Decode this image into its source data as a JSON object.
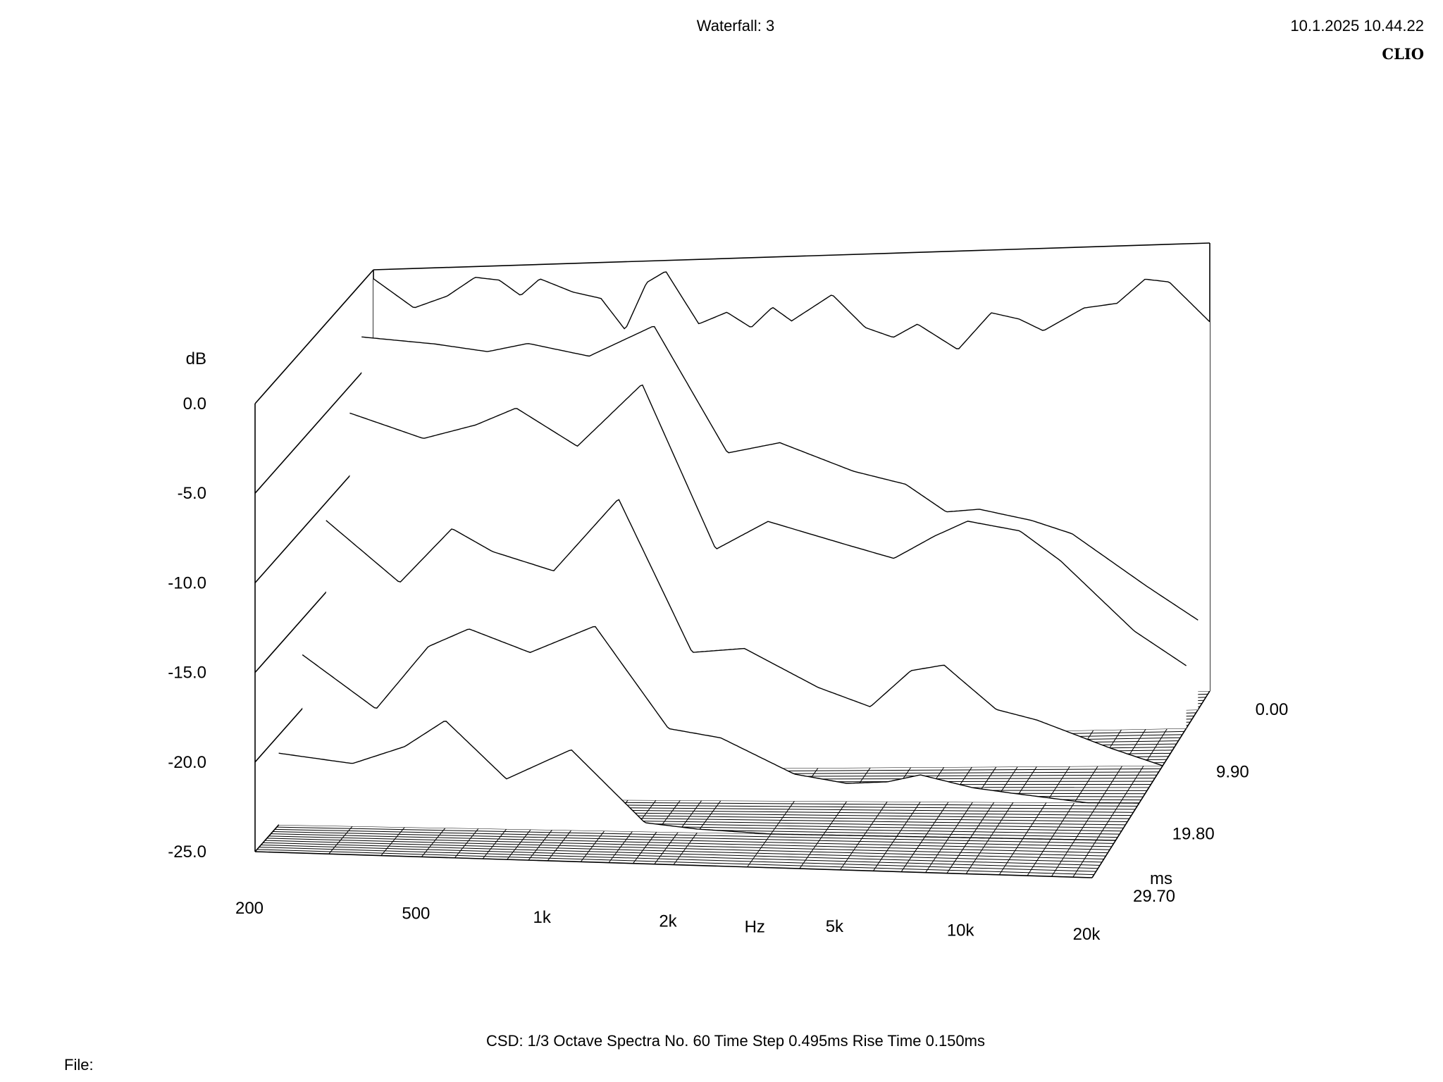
{
  "header": {
    "title": "Waterfall: 3",
    "timestamp": "10.1.2025 10.44.22",
    "brand": "CLIO"
  },
  "footer": {
    "info": "CSD:   1/3 Octave   Spectra No. 60   Time Step 0.495ms   Rise Time 0.150ms",
    "file_label": "File:"
  },
  "chart_data": {
    "type": "waterfall",
    "title": "Waterfall: 3",
    "analysis": "CSD 1/3 Octave",
    "spectra_count": 60,
    "time_step_ms": 0.495,
    "rise_time_ms": 0.15,
    "x_axis": {
      "label": "Hz",
      "scale": "log",
      "range": [
        200,
        20000
      ],
      "ticks": [
        {
          "value": 200,
          "label": "200"
        },
        {
          "value": 500,
          "label": "500"
        },
        {
          "value": 1000,
          "label": "1k"
        },
        {
          "value": 2000,
          "label": "2k"
        },
        {
          "value": 5000,
          "label": "5k"
        },
        {
          "value": 10000,
          "label": "10k"
        },
        {
          "value": 20000,
          "label": "20k"
        }
      ]
    },
    "y_axis": {
      "label": "dB",
      "range": [
        -25,
        0
      ],
      "ticks": [
        {
          "value": 0,
          "label": "0.0"
        },
        {
          "value": -5,
          "label": "-5.0"
        },
        {
          "value": -10,
          "label": "-10.0"
        },
        {
          "value": -15,
          "label": "-15.0"
        },
        {
          "value": -20,
          "label": "-20.0"
        },
        {
          "value": -25,
          "label": "-25.0"
        }
      ]
    },
    "z_axis": {
      "label": "ms",
      "range": [
        0,
        29.7
      ],
      "ticks": [
        {
          "value": 0,
          "label": "0.00"
        },
        {
          "value": 9.9,
          "label": "9.90"
        },
        {
          "value": 19.8,
          "label": "19.80"
        },
        {
          "value": 29.7,
          "label": "29.70"
        }
      ]
    },
    "series": [
      {
        "time_ms": 0.0,
        "freq": [
          200,
          250,
          300,
          350,
          400,
          450,
          500,
          600,
          700,
          800,
          900,
          1000,
          1200,
          1400,
          1600,
          1800,
          2000,
          2500,
          3000,
          3500,
          4000,
          5000,
          6000,
          7000,
          8000,
          10000,
          12000,
          14000,
          16000,
          20000
        ],
        "db": [
          -0.5,
          -2.2,
          -1.6,
          -0.6,
          -0.8,
          -1.7,
          -0.8,
          -1.6,
          -2.0,
          -3.8,
          -1.2,
          -0.6,
          -3.6,
          -3.0,
          -3.9,
          -2.8,
          -3.6,
          -2.2,
          -4.1,
          -4.7,
          -4.0,
          -5.5,
          -3.5,
          -3.9,
          -4.6,
          -3.4,
          -3.2,
          -1.9,
          -2.1,
          -4.4
        ]
      },
      {
        "time_ms": 2.97,
        "freq": [
          200,
          300,
          400,
          500,
          700,
          1000,
          1500,
          2000,
          3000,
          4000,
          5000,
          6000,
          8000,
          10000,
          15000,
          20000
        ],
        "db": [
          -3.0,
          -3.5,
          -4.0,
          -3.6,
          -4.4,
          -2.8,
          -10.0,
          -9.5,
          -11.2,
          -12.0,
          -13.6,
          -13.5,
          -14.2,
          -15.0,
          -18.0,
          -20.0
        ]
      },
      {
        "time_ms": 5.94,
        "freq": [
          200,
          300,
          400,
          500,
          700,
          1000,
          1500,
          2000,
          3000,
          4000,
          5000,
          6000,
          8000,
          10000,
          15000,
          20000
        ],
        "db": [
          -6.5,
          -8.0,
          -7.3,
          -6.4,
          -8.6,
          -5.2,
          -14.5,
          -13.0,
          -14.3,
          -15.2,
          -14.0,
          -13.2,
          -13.8,
          -15.5,
          -19.5,
          -21.5
        ]
      },
      {
        "time_ms": 11.88,
        "freq": [
          200,
          300,
          400,
          500,
          700,
          1000,
          1500,
          2000,
          3000,
          4000,
          5000,
          6000,
          8000,
          10000,
          15000,
          20000
        ],
        "db": [
          -11.0,
          -14.5,
          -11.5,
          -12.8,
          -13.9,
          -9.9,
          -18.5,
          -18.3,
          -20.5,
          -21.6,
          -19.6,
          -19.3,
          -21.8,
          -22.4,
          -24.0,
          -25.0
        ]
      },
      {
        "time_ms": 17.82,
        "freq": [
          200,
          300,
          400,
          500,
          700,
          1000,
          1500,
          2000,
          3000,
          4000,
          5000,
          6000,
          8000,
          10000,
          15000,
          20000
        ],
        "db": [
          -17.0,
          -20.0,
          -16.5,
          -15.5,
          -16.8,
          -15.3,
          -21.0,
          -21.5,
          -23.5,
          -24.0,
          -23.9,
          -23.5,
          -24.2,
          -24.5,
          -25.0,
          -25.0
        ]
      },
      {
        "time_ms": 23.76,
        "freq": [
          200,
          300,
          400,
          500,
          700,
          1000,
          1500,
          2000,
          3000,
          5000,
          10000,
          20000
        ],
        "db": [
          -21.0,
          -21.5,
          -20.5,
          -19.0,
          -22.2,
          -20.5,
          -24.5,
          -24.8,
          -25.0,
          -25.0,
          -25.0,
          -25.0
        ]
      }
    ],
    "grid": true,
    "legend": "none"
  }
}
